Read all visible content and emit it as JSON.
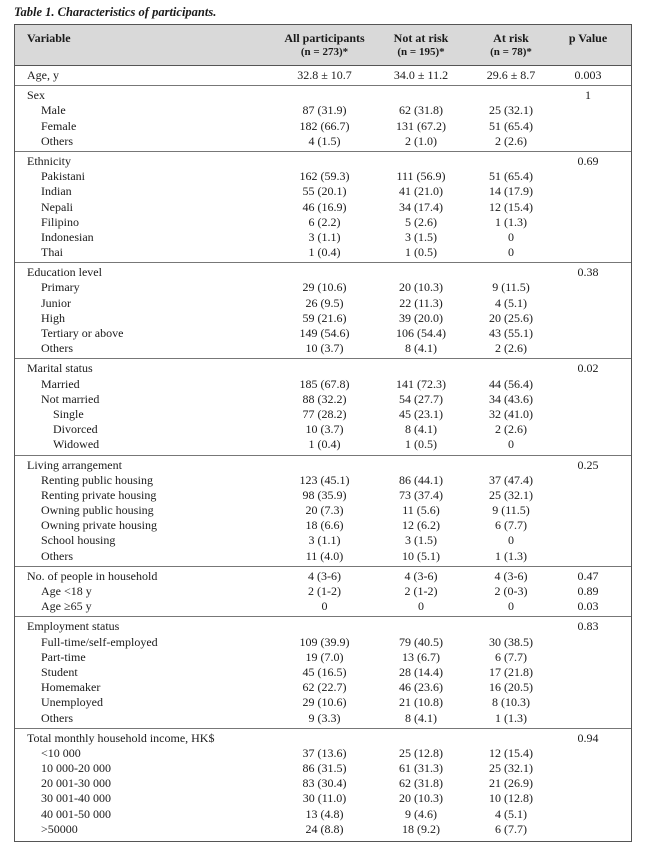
{
  "caption": "Table 1. Characteristics of participants.",
  "header": {
    "variable": "Variable",
    "all_title": "All participants",
    "all_n": "(n = 273)*",
    "notrisk_title": "Not at risk",
    "notrisk_n": "(n = 195)*",
    "atrisk_title": "At risk",
    "atrisk_n": "(n = 78)*",
    "pvalue": "p Value"
  },
  "sections": [
    {
      "title": "Age, y",
      "all": "32.8 ± 10.7",
      "notrisk": "34.0 ± 11.2",
      "atrisk": "29.6 ± 8.7",
      "p": "0.003",
      "rows": []
    },
    {
      "title": "Sex",
      "p": "1",
      "rows": [
        {
          "label": "Male",
          "all": "87 (31.9)",
          "notrisk": "62 (31.8)",
          "atrisk": "25 (32.1)"
        },
        {
          "label": "Female",
          "all": "182 (66.7)",
          "notrisk": "131 (67.2)",
          "atrisk": "51 (65.4)"
        },
        {
          "label": "Others",
          "all": "4 (1.5)",
          "notrisk": "2 (1.0)",
          "atrisk": "2 (2.6)"
        }
      ]
    },
    {
      "title": "Ethnicity",
      "p": "0.69",
      "rows": [
        {
          "label": "Pakistani",
          "all": "162 (59.3)",
          "notrisk": "111 (56.9)",
          "atrisk": "51 (65.4)"
        },
        {
          "label": "Indian",
          "all": "55 (20.1)",
          "notrisk": "41 (21.0)",
          "atrisk": "14 (17.9)"
        },
        {
          "label": "Nepali",
          "all": "46 (16.9)",
          "notrisk": "34 (17.4)",
          "atrisk": "12 (15.4)"
        },
        {
          "label": "Filipino",
          "all": "6 (2.2)",
          "notrisk": "5 (2.6)",
          "atrisk": "1 (1.3)"
        },
        {
          "label": "Indonesian",
          "all": "3 (1.1)",
          "notrisk": "3 (1.5)",
          "atrisk": "0"
        },
        {
          "label": "Thai",
          "all": "1 (0.4)",
          "notrisk": "1 (0.5)",
          "atrisk": "0"
        }
      ]
    },
    {
      "title": "Education level",
      "p": "0.38",
      "rows": [
        {
          "label": "Primary",
          "all": "29 (10.6)",
          "notrisk": "20 (10.3)",
          "atrisk": "9 (11.5)"
        },
        {
          "label": "Junior",
          "all": "26 (9.5)",
          "notrisk": "22 (11.3)",
          "atrisk": "4 (5.1)"
        },
        {
          "label": "High",
          "all": "59 (21.6)",
          "notrisk": "39 (20.0)",
          "atrisk": "20 (25.6)"
        },
        {
          "label": "Tertiary or above",
          "all": "149 (54.6)",
          "notrisk": "106 (54.4)",
          "atrisk": "43 (55.1)"
        },
        {
          "label": "Others",
          "all": "10 (3.7)",
          "notrisk": "8 (4.1)",
          "atrisk": "2 (2.6)"
        }
      ]
    },
    {
      "title": "Marital status",
      "p": "0.02",
      "rows": [
        {
          "label": "Married",
          "all": "185 (67.8)",
          "notrisk": "141 (72.3)",
          "atrisk": "44 (56.4)"
        },
        {
          "label": "Not married",
          "all": "88 (32.2)",
          "notrisk": "54 (27.7)",
          "atrisk": "34 (43.6)"
        },
        {
          "label": "Single",
          "indent": 2,
          "all": "77 (28.2)",
          "notrisk": "45 (23.1)",
          "atrisk": "32 (41.0)"
        },
        {
          "label": "Divorced",
          "indent": 2,
          "all": "10 (3.7)",
          "notrisk": "8 (4.1)",
          "atrisk": "2 (2.6)"
        },
        {
          "label": "Widowed",
          "indent": 2,
          "all": "1 (0.4)",
          "notrisk": "1 (0.5)",
          "atrisk": "0"
        }
      ]
    },
    {
      "title": "Living arrangement",
      "p": "0.25",
      "rows": [
        {
          "label": "Renting public housing",
          "all": "123 (45.1)",
          "notrisk": "86 (44.1)",
          "atrisk": "37 (47.4)"
        },
        {
          "label": "Renting private housing",
          "all": "98 (35.9)",
          "notrisk": "73 (37.4)",
          "atrisk": "25 (32.1)"
        },
        {
          "label": "Owning public housing",
          "all": "20 (7.3)",
          "notrisk": "11 (5.6)",
          "atrisk": "9 (11.5)"
        },
        {
          "label": "Owning private housing",
          "all": "18 (6.6)",
          "notrisk": "12 (6.2)",
          "atrisk": "6 (7.7)"
        },
        {
          "label": "School housing",
          "all": "3 (1.1)",
          "notrisk": "3 (1.5)",
          "atrisk": "0"
        },
        {
          "label": "Others",
          "all": "11 (4.0)",
          "notrisk": "10 (5.1)",
          "atrisk": "1 (1.3)"
        }
      ]
    },
    {
      "title": "No. of people in household",
      "all": "4 (3-6)",
      "notrisk": "4 (3-6)",
      "atrisk": "4 (3-6)",
      "p": "0.47",
      "rows": [
        {
          "label": "Age <18 y",
          "all": "2 (1-2)",
          "notrisk": "2 (1-2)",
          "atrisk": "2 (0-3)",
          "p": "0.89"
        },
        {
          "label": "Age ≥65 y",
          "all": "0",
          "notrisk": "0",
          "atrisk": "0",
          "p": "0.03"
        }
      ]
    },
    {
      "title": "Employment status",
      "p": "0.83",
      "rows": [
        {
          "label": "Full-time/self-employed",
          "all": "109 (39.9)",
          "notrisk": "79 (40.5)",
          "atrisk": "30 (38.5)"
        },
        {
          "label": "Part-time",
          "all": "19 (7.0)",
          "notrisk": "13 (6.7)",
          "atrisk": "6 (7.7)"
        },
        {
          "label": "Student",
          "all": "45 (16.5)",
          "notrisk": "28 (14.4)",
          "atrisk": "17 (21.8)"
        },
        {
          "label": "Homemaker",
          "all": "62 (22.7)",
          "notrisk": "46 (23.6)",
          "atrisk": "16 (20.5)"
        },
        {
          "label": "Unemployed",
          "all": "29 (10.6)",
          "notrisk": "21 (10.8)",
          "atrisk": "8 (10.3)"
        },
        {
          "label": "Others",
          "all": "9 (3.3)",
          "notrisk": "8 (4.1)",
          "atrisk": "1 (1.3)"
        }
      ]
    },
    {
      "title": "Total monthly household income, HK$",
      "p": "0.94",
      "rows": [
        {
          "label": "<10 000",
          "all": "37 (13.6)",
          "notrisk": "25 (12.8)",
          "atrisk": "12 (15.4)"
        },
        {
          "label": "10 000-20 000",
          "all": "86 (31.5)",
          "notrisk": "61 (31.3)",
          "atrisk": "25 (32.1)"
        },
        {
          "label": "20 001-30 000",
          "all": "83 (30.4)",
          "notrisk": "62 (31.8)",
          "atrisk": "21 (26.9)"
        },
        {
          "label": "30 001-40 000",
          "all": "30 (11.0)",
          "notrisk": "20 (10.3)",
          "atrisk": "10 (12.8)"
        },
        {
          "label": "40 001-50 000",
          "all": "13 (4.8)",
          "notrisk": "9 (4.6)",
          "atrisk": "4 (5.1)"
        },
        {
          "label": ">50000",
          "all": "24 (8.8)",
          "notrisk": "18 (9.2)",
          "atrisk": "6 (7.7)"
        }
      ]
    }
  ]
}
